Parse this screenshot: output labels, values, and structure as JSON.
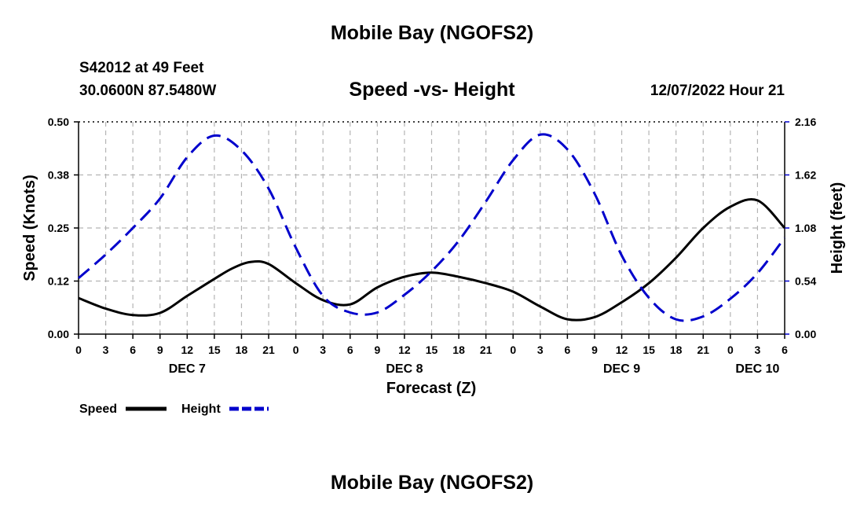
{
  "header": {
    "title": "Mobile Bay (NGOFS2)",
    "station": "S42012 at 49 Feet",
    "coords": "30.0600N  87.5480W",
    "subtitle": "Speed -vs- Height",
    "datetime": "12/07/2022 Hour 21"
  },
  "footer": {
    "title": "Mobile Bay (NGOFS2)"
  },
  "chart_data": {
    "type": "line",
    "xlabel": "Forecast (Z)",
    "ylabel_left": "Speed (Knots)",
    "ylabel_right": "Height (feet)",
    "xlim": [
      0,
      78
    ],
    "ylim_left": [
      0,
      0.5
    ],
    "ylim_right": [
      0,
      2.16
    ],
    "left_ticks": [
      "0.00",
      "0.12",
      "0.25",
      "0.38",
      "0.50"
    ],
    "right_ticks": [
      "0.00",
      "0.54",
      "1.08",
      "1.62",
      "2.16"
    ],
    "x_ticks": [
      "0",
      "3",
      "6",
      "9",
      "12",
      "15",
      "18",
      "21",
      "0",
      "3",
      "6",
      "9",
      "12",
      "15",
      "18",
      "21",
      "0",
      "3",
      "6",
      "9",
      "12",
      "15",
      "18",
      "21",
      "0",
      "3",
      "6"
    ],
    "x_tick_hours": [
      0,
      3,
      6,
      9,
      12,
      15,
      18,
      21,
      24,
      27,
      30,
      33,
      36,
      39,
      42,
      45,
      48,
      51,
      54,
      57,
      60,
      63,
      66,
      69,
      72,
      75,
      78
    ],
    "day_labels": [
      {
        "label": "DEC 7",
        "hour": 12
      },
      {
        "label": "DEC 8",
        "hour": 36
      },
      {
        "label": "DEC 9",
        "hour": 60
      },
      {
        "label": "DEC 10",
        "hour": 75
      }
    ],
    "grid": true,
    "legend_position": "bottom-left",
    "series": [
      {
        "name": "Speed",
        "axis": "left",
        "color": "#000000",
        "style": "solid",
        "hours": [
          0,
          3,
          6,
          9,
          12,
          15,
          17,
          19,
          21,
          24,
          27,
          30,
          33,
          36,
          39,
          42,
          45,
          48,
          51,
          54,
          57,
          60,
          63,
          66,
          69,
          72,
          75,
          78
        ],
        "values": [
          0.085,
          0.06,
          0.045,
          0.05,
          0.09,
          0.13,
          0.155,
          0.17,
          0.165,
          0.12,
          0.08,
          0.07,
          0.11,
          0.135,
          0.145,
          0.135,
          0.12,
          0.1,
          0.065,
          0.035,
          0.04,
          0.075,
          0.12,
          0.18,
          0.25,
          0.3,
          0.315,
          0.25
        ]
      },
      {
        "name": "Height",
        "axis": "right",
        "color": "#0000cc",
        "style": "dashed",
        "hours": [
          0,
          3,
          6,
          9,
          12,
          15,
          18,
          21,
          24,
          27,
          30,
          33,
          36,
          39,
          42,
          45,
          48,
          51,
          54,
          57,
          60,
          63,
          66,
          69,
          72,
          75,
          78
        ],
        "values": [
          0.57,
          0.81,
          1.08,
          1.38,
          1.8,
          2.02,
          1.87,
          1.48,
          0.88,
          0.39,
          0.22,
          0.22,
          0.4,
          0.64,
          0.95,
          1.35,
          1.77,
          2.03,
          1.88,
          1.43,
          0.8,
          0.37,
          0.15,
          0.18,
          0.36,
          0.62,
          0.98
        ]
      }
    ]
  }
}
